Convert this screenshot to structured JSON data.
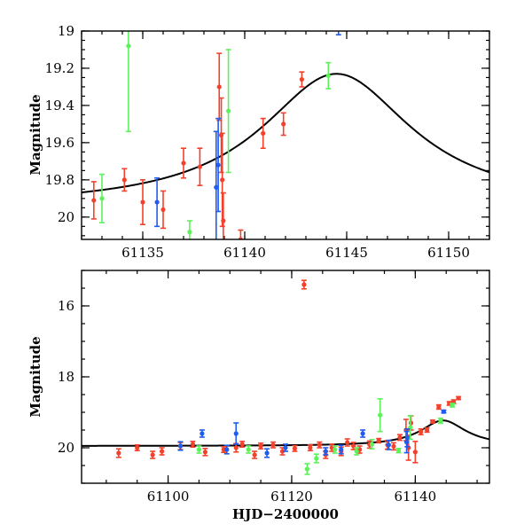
{
  "chart_data": [
    {
      "type": "scatter",
      "panel": "top",
      "title": "",
      "xlabel": "",
      "ylabel": "Magnitude",
      "xlim": [
        61132,
        61152
      ],
      "ylim": [
        19.0,
        20.12
      ],
      "y_inverted": true,
      "xticks": [
        61135,
        61140,
        61145,
        61150
      ],
      "xtick_labels": [
        "61135",
        "61140",
        "61145",
        "61150"
      ],
      "yticks": [
        19.0,
        19.2,
        19.4,
        19.6,
        19.8,
        20.0
      ],
      "ytick_labels": [
        "19",
        "19.2",
        "19.4",
        "19.6",
        "19.8",
        "20"
      ],
      "series": [
        {
          "name": "red",
          "color": "#f4412b",
          "points": [
            {
              "x": 61132.6,
              "y": 19.91,
              "err": 0.1
            },
            {
              "x": 61134.1,
              "y": 19.8,
              "err": 0.06
            },
            {
              "x": 61135.0,
              "y": 19.92,
              "err": 0.12
            },
            {
              "x": 61136.0,
              "y": 19.96,
              "err": 0.1
            },
            {
              "x": 61137.0,
              "y": 19.71,
              "err": 0.08
            },
            {
              "x": 61137.8,
              "y": 19.73,
              "err": 0.1
            },
            {
              "x": 61138.75,
              "y": 19.3,
              "err": 0.18
            },
            {
              "x": 61138.85,
              "y": 19.56,
              "err": 0.2
            },
            {
              "x": 61138.9,
              "y": 19.8,
              "err": 0.25
            },
            {
              "x": 61138.95,
              "y": 20.02,
              "err": 0.15
            },
            {
              "x": 61139.8,
              "y": 20.12,
              "err": 0.05
            },
            {
              "x": 61140.9,
              "y": 19.55,
              "err": 0.08
            },
            {
              "x": 61141.9,
              "y": 19.5,
              "err": 0.06
            },
            {
              "x": 61142.8,
              "y": 19.26,
              "err": 0.04
            }
          ]
        },
        {
          "name": "green",
          "color": "#5df25a",
          "points": [
            {
              "x": 61133.0,
              "y": 19.9,
              "err": 0.13
            },
            {
              "x": 61134.3,
              "y": 19.08,
              "err": 0.46
            },
            {
              "x": 61137.3,
              "y": 20.08,
              "err": 0.06
            },
            {
              "x": 61139.2,
              "y": 19.43,
              "err": 0.33
            },
            {
              "x": 61144.1,
              "y": 19.24,
              "err": 0.07
            }
          ]
        },
        {
          "name": "blue",
          "color": "#1f5cf0",
          "points": [
            {
              "x": 61135.7,
              "y": 19.92,
              "err": 0.13
            },
            {
              "x": 61138.6,
              "y": 19.84,
              "err": 0.3
            },
            {
              "x": 61138.7,
              "y": 19.72,
              "err": 0.25
            },
            {
              "x": 61144.6,
              "y": 18.98,
              "err": 0.04
            }
          ]
        }
      ],
      "model": {
        "name": "model",
        "baseline": 19.95,
        "amplitude": 0.72,
        "t_peak": 61144.5,
        "width": 4.5
      }
    },
    {
      "type": "scatter",
      "panel": "bottom",
      "title": "",
      "xlabel": "HJD−2400000",
      "ylabel": "Magnitude",
      "xlim": [
        61086,
        61152
      ],
      "ylim": [
        15.0,
        21.0
      ],
      "y_inverted": true,
      "xticks": [
        61100,
        61120,
        61140
      ],
      "xtick_labels": [
        "61100",
        "61120",
        "61140"
      ],
      "yticks": [
        16,
        18,
        20
      ],
      "ytick_labels": [
        "16",
        "18",
        "20"
      ],
      "series": [
        {
          "name": "red",
          "color": "#f4412b",
          "points": [
            {
              "x": 61092,
              "y": 20.15,
              "err": 0.12
            },
            {
              "x": 61095,
              "y": 20.0,
              "err": 0.08
            },
            {
              "x": 61097.5,
              "y": 20.2,
              "err": 0.1
            },
            {
              "x": 61099,
              "y": 20.1,
              "err": 0.1
            },
            {
              "x": 61102,
              "y": 19.95,
              "err": 0.1
            },
            {
              "x": 61104,
              "y": 19.9,
              "err": 0.08
            },
            {
              "x": 61106,
              "y": 20.12,
              "err": 0.1
            },
            {
              "x": 61109,
              "y": 20.05,
              "err": 0.08
            },
            {
              "x": 61111,
              "y": 20.0,
              "err": 0.12
            },
            {
              "x": 61112,
              "y": 19.9,
              "err": 0.08
            },
            {
              "x": 61114,
              "y": 20.2,
              "err": 0.1
            },
            {
              "x": 61115,
              "y": 19.95,
              "err": 0.08
            },
            {
              "x": 61117,
              "y": 19.92,
              "err": 0.08
            },
            {
              "x": 61118.5,
              "y": 20.1,
              "err": 0.1
            },
            {
              "x": 61120.5,
              "y": 20.02,
              "err": 0.08
            },
            {
              "x": 61122,
              "y": 15.4,
              "err": 0.12
            },
            {
              "x": 61123,
              "y": 20.0,
              "err": 0.08
            },
            {
              "x": 61124.5,
              "y": 19.92,
              "err": 0.08
            },
            {
              "x": 61125.5,
              "y": 20.2,
              "err": 0.1
            },
            {
              "x": 61126.5,
              "y": 20.0,
              "err": 0.1
            },
            {
              "x": 61128,
              "y": 20.1,
              "err": 0.12
            },
            {
              "x": 61129,
              "y": 19.85,
              "err": 0.1
            },
            {
              "x": 61130,
              "y": 19.95,
              "err": 0.1
            },
            {
              "x": 61131,
              "y": 20.05,
              "err": 0.1
            },
            {
              "x": 61132.6,
              "y": 19.91,
              "err": 0.1
            },
            {
              "x": 61134.1,
              "y": 19.8,
              "err": 0.06
            },
            {
              "x": 61135.5,
              "y": 19.92,
              "err": 0.12
            },
            {
              "x": 61136.5,
              "y": 19.96,
              "err": 0.1
            },
            {
              "x": 61137.5,
              "y": 19.71,
              "err": 0.08
            },
            {
              "x": 61138.5,
              "y": 19.5,
              "err": 0.3
            },
            {
              "x": 61138.9,
              "y": 20.0,
              "err": 0.35
            },
            {
              "x": 61139.3,
              "y": 19.3,
              "err": 0.2
            },
            {
              "x": 61140,
              "y": 20.12,
              "err": 0.3
            },
            {
              "x": 61140.9,
              "y": 19.55,
              "err": 0.08
            },
            {
              "x": 61141.9,
              "y": 19.5,
              "err": 0.06
            },
            {
              "x": 61142.8,
              "y": 19.26,
              "err": 0.04
            },
            {
              "x": 61143.8,
              "y": 18.85,
              "err": 0.06
            },
            {
              "x": 61145.5,
              "y": 18.75,
              "err": 0.05
            },
            {
              "x": 61146.2,
              "y": 18.7,
              "err": 0.05
            },
            {
              "x": 61147,
              "y": 18.6,
              "err": 0.04
            }
          ]
        },
        {
          "name": "green",
          "color": "#5df25a",
          "points": [
            {
              "x": 61105,
              "y": 20.05,
              "err": 0.1
            },
            {
              "x": 61113,
              "y": 20.05,
              "err": 0.1
            },
            {
              "x": 61122.5,
              "y": 20.6,
              "err": 0.15
            },
            {
              "x": 61124,
              "y": 20.3,
              "err": 0.12
            },
            {
              "x": 61127,
              "y": 20.05,
              "err": 0.1
            },
            {
              "x": 61130.5,
              "y": 20.1,
              "err": 0.1
            },
            {
              "x": 61133,
              "y": 19.9,
              "err": 0.13
            },
            {
              "x": 61134.3,
              "y": 19.08,
              "err": 0.46
            },
            {
              "x": 61137.3,
              "y": 20.08,
              "err": 0.06
            },
            {
              "x": 61139.2,
              "y": 19.43,
              "err": 0.33
            },
            {
              "x": 61144.1,
              "y": 19.24,
              "err": 0.07
            },
            {
              "x": 61146,
              "y": 18.8,
              "err": 0.05
            }
          ]
        },
        {
          "name": "blue",
          "color": "#1f5cf0",
          "points": [
            {
              "x": 61102,
              "y": 19.95,
              "err": 0.12
            },
            {
              "x": 61105.5,
              "y": 19.6,
              "err": 0.1
            },
            {
              "x": 61109.5,
              "y": 20.05,
              "err": 0.12
            },
            {
              "x": 61111,
              "y": 19.6,
              "err": 0.3
            },
            {
              "x": 61116,
              "y": 20.15,
              "err": 0.12
            },
            {
              "x": 61119,
              "y": 20.0,
              "err": 0.1
            },
            {
              "x": 61125.5,
              "y": 20.1,
              "err": 0.1
            },
            {
              "x": 61128,
              "y": 20.05,
              "err": 0.12
            },
            {
              "x": 61131.5,
              "y": 19.6,
              "err": 0.1
            },
            {
              "x": 61135.7,
              "y": 19.92,
              "err": 0.13
            },
            {
              "x": 61138.6,
              "y": 19.84,
              "err": 0.3
            },
            {
              "x": 61138.7,
              "y": 19.72,
              "err": 0.25
            },
            {
              "x": 61144.6,
              "y": 18.98,
              "err": 0.04
            }
          ]
        }
      ],
      "model": {
        "name": "model",
        "baseline": 19.95,
        "amplitude": 0.72,
        "t_peak": 61144.5,
        "width": 4.5
      }
    }
  ]
}
